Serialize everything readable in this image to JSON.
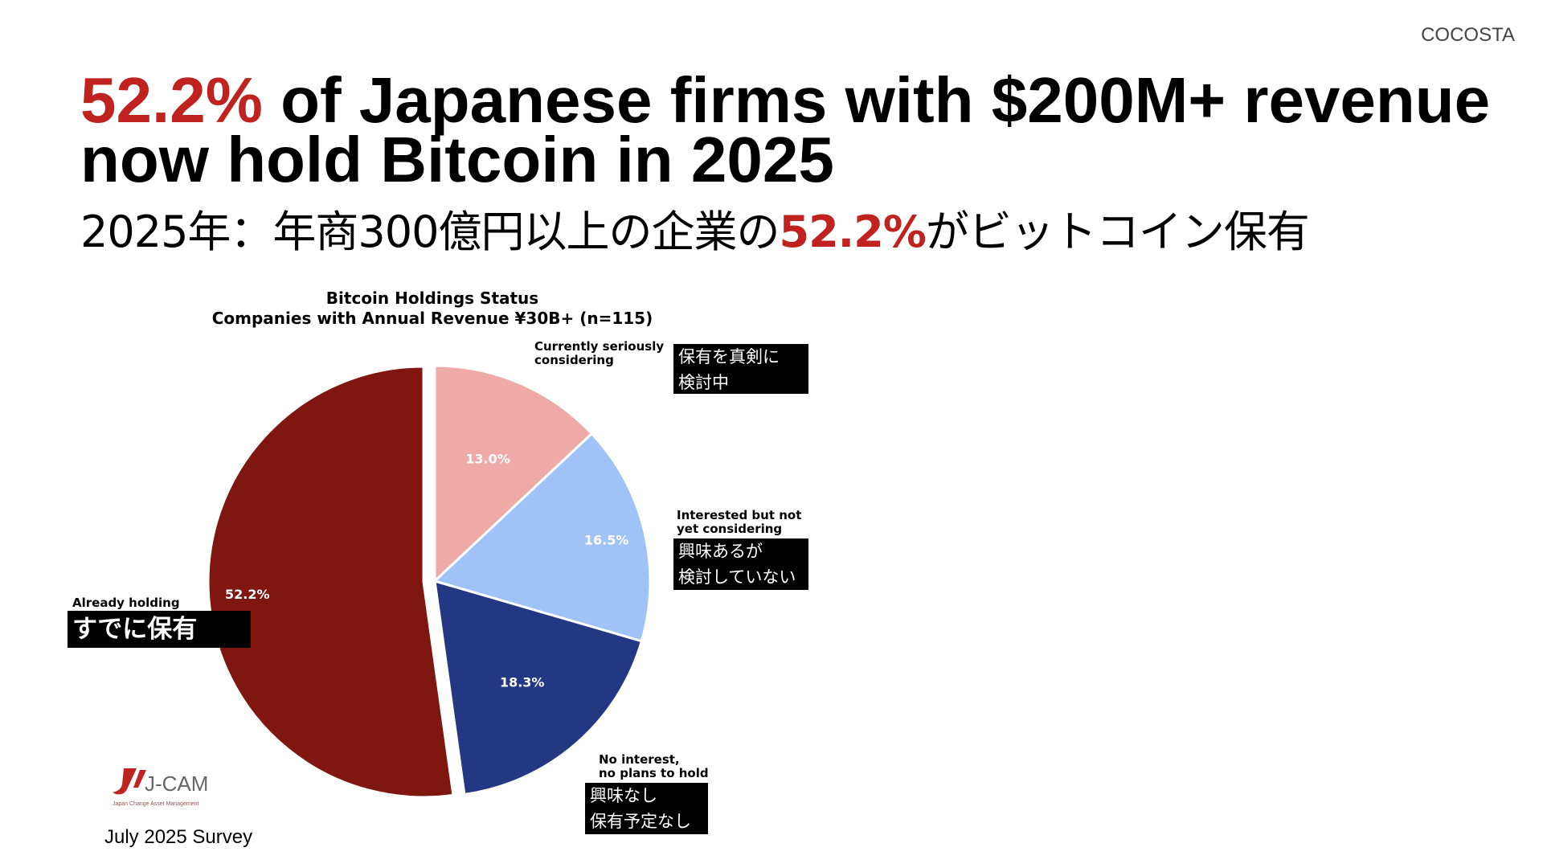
{
  "brand": "COCOSTA",
  "headline": {
    "highlight": "52.2%",
    "rest": " of Japanese firms with $200M+ revenue now hold Bitcoin in 2025"
  },
  "subheadline": {
    "before": "2025年：年商300億円以上の企業の",
    "highlight": "52.2%",
    "after": "がビットコイン保有"
  },
  "footer": {
    "survey": "July 2025 Survey"
  },
  "logo": {
    "text": "J-CAM",
    "tagline": "Japan Change Asset Management"
  },
  "colors": {
    "accent": "#c0231f"
  },
  "chart_data": {
    "type": "pie",
    "title": "Bitcoin Holdings Status",
    "subtitle": "Companies with Annual Revenue ¥30B+ (n=115)",
    "slices": [
      {
        "label": "Currently seriously considering",
        "label_jp": "保有を真剣に検討中",
        "value": 13.0,
        "value_label": "13.0%",
        "color": "#efaaa8"
      },
      {
        "label": "Interested but not yet considering",
        "label_jp": "興味あるが検討していない",
        "value": 16.5,
        "value_label": "16.5%",
        "color": "#9fc3f7"
      },
      {
        "label": "No interest, no plans to hold",
        "label_jp": "興味なし保有予定なし",
        "value": 18.3,
        "value_label": "18.3%",
        "color": "#243782"
      },
      {
        "label": "Already holding",
        "label_jp": "すでに保有",
        "value": 52.2,
        "value_label": "52.2%",
        "color": "#7f1610"
      }
    ]
  }
}
